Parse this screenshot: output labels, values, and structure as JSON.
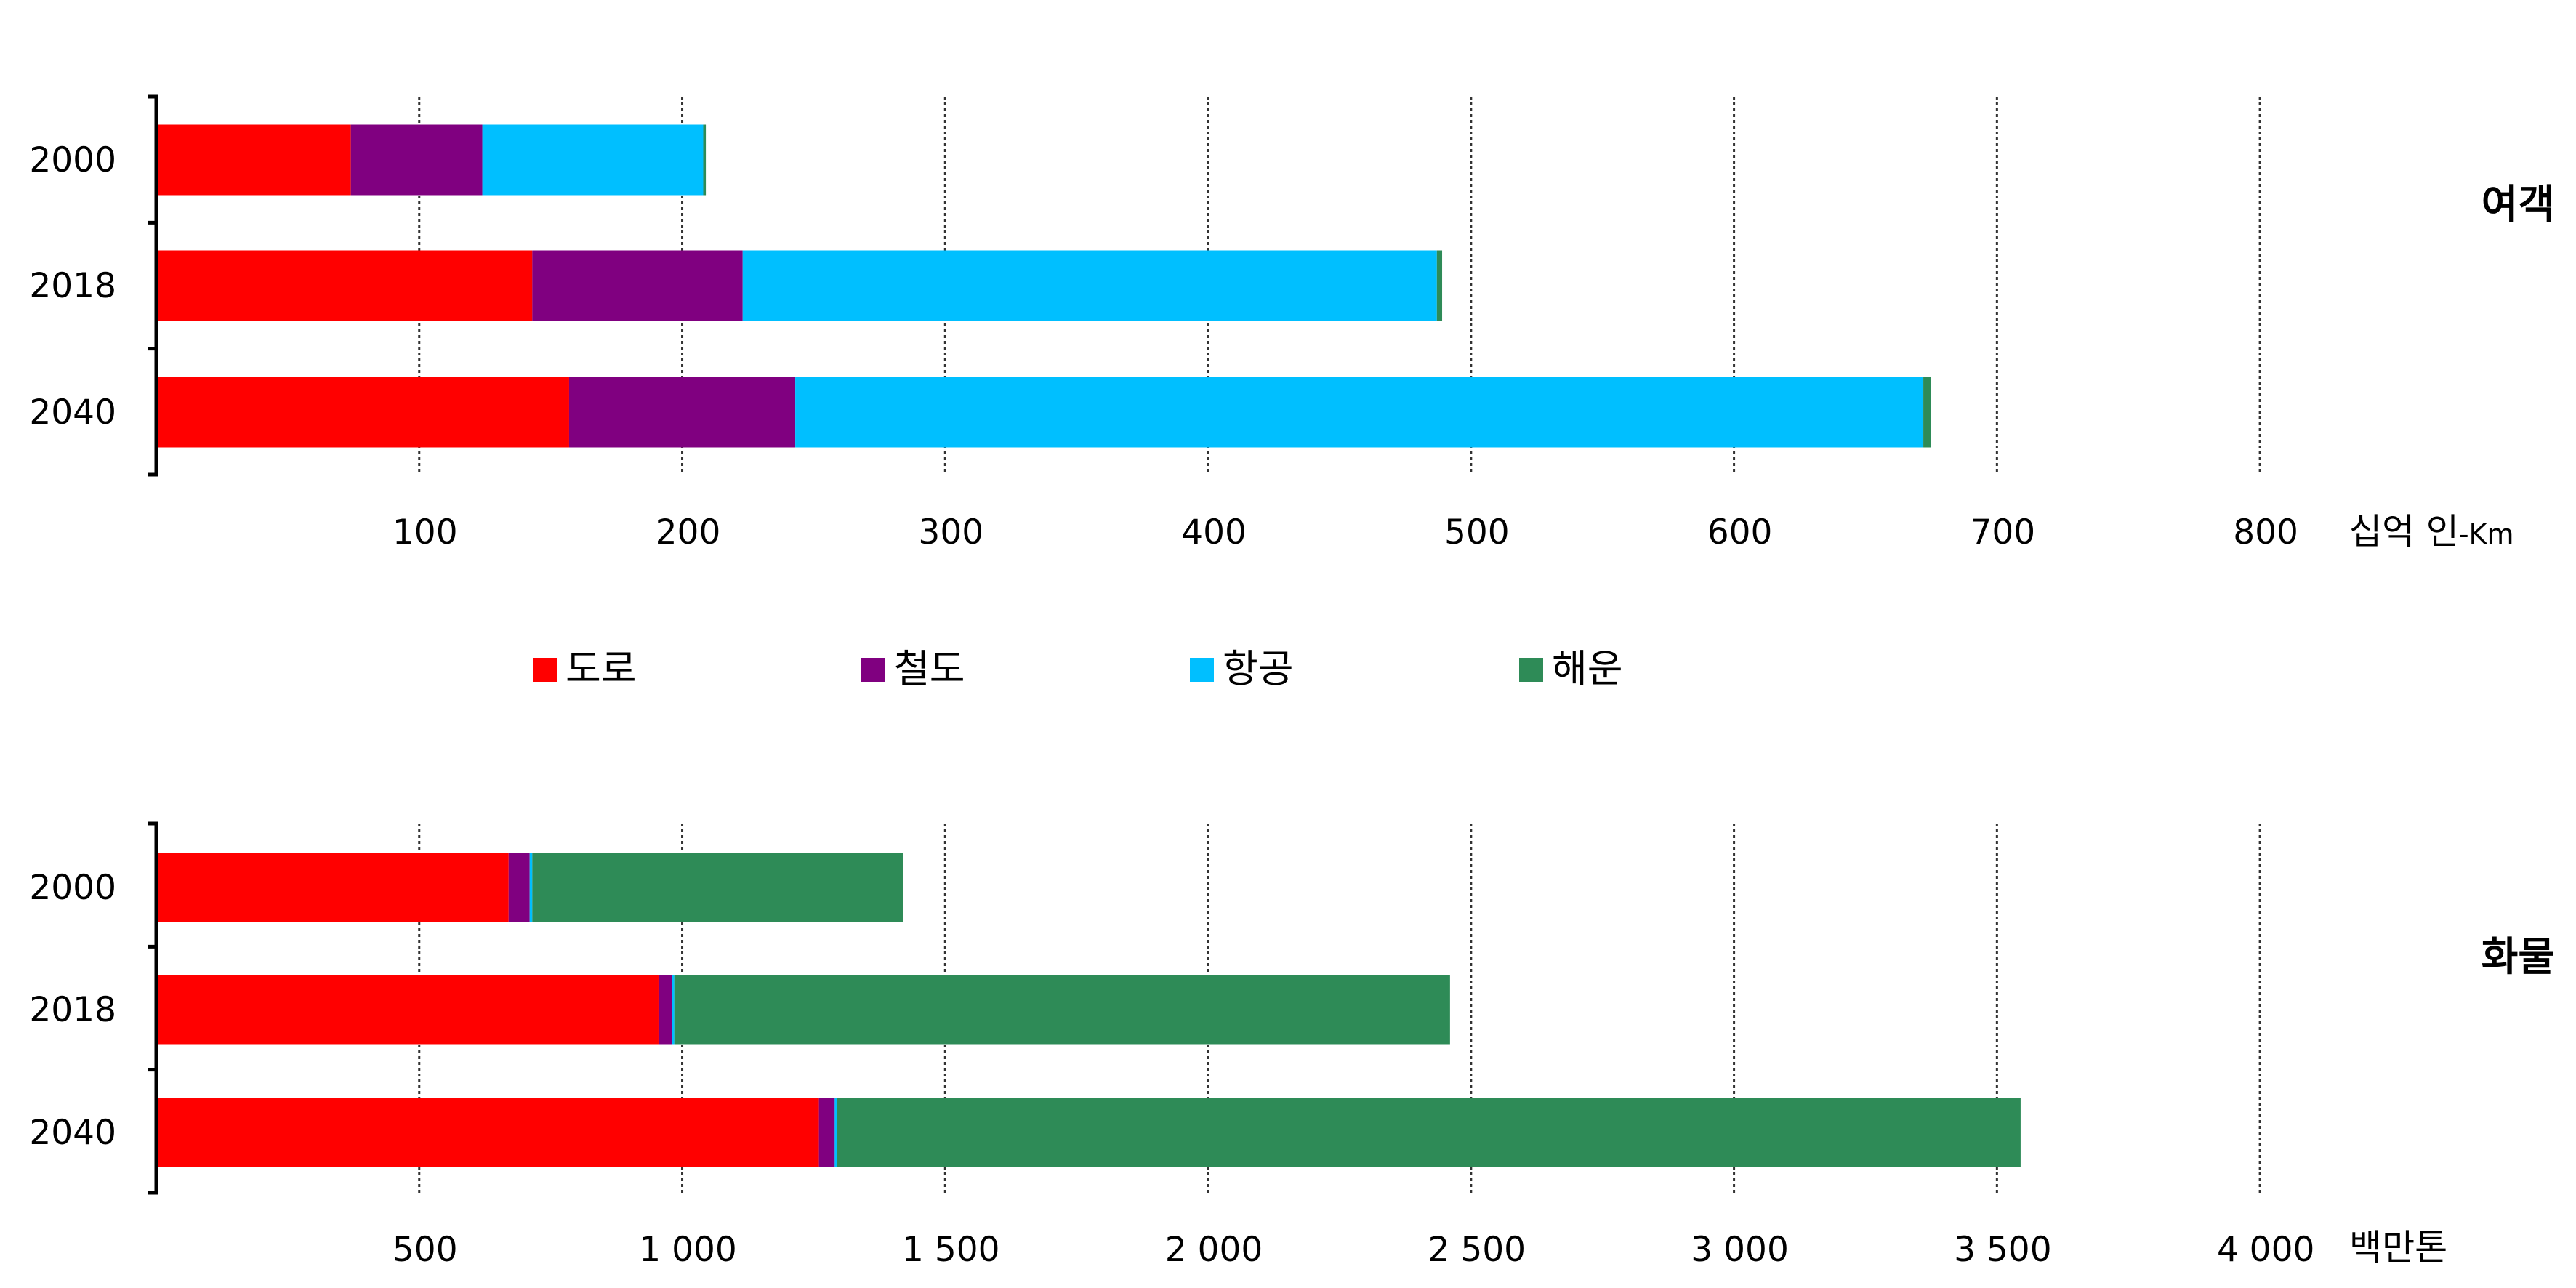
{
  "colors": {
    "road": "#ff0000",
    "rail": "#800080",
    "air": "#00bfff",
    "sea": "#2e8b57"
  },
  "legend": [
    {
      "key": "road",
      "label": "도로"
    },
    {
      "key": "rail",
      "label": "철도"
    },
    {
      "key": "air",
      "label": "항공"
    },
    {
      "key": "sea",
      "label": "해운"
    }
  ],
  "chart_data": [
    {
      "type": "bar",
      "orientation": "horizontal",
      "stacked": true,
      "side_label": "여객",
      "unit_main": "십억 인",
      "unit_suffix": "-Km",
      "categories": [
        "2000",
        "2018",
        "2040"
      ],
      "xlim": [
        0,
        850
      ],
      "grid": "vertical dotted",
      "tick_values": [
        100,
        200,
        300,
        400,
        500,
        600,
        700,
        800
      ],
      "tick_labels": [
        "100",
        "200",
        "300",
        "400",
        "500",
        "600",
        "700",
        "800"
      ],
      "series": [
        {
          "key": "road",
          "name": "도로",
          "values": [
            74,
            143,
            157
          ]
        },
        {
          "key": "rail",
          "name": "철도",
          "values": [
            50,
            80,
            86
          ]
        },
        {
          "key": "air",
          "name": "항공",
          "values": [
            84,
            264,
            429
          ]
        },
        {
          "key": "sea",
          "name": "해운",
          "values": [
            1,
            2,
            3
          ]
        }
      ]
    },
    {
      "type": "bar",
      "orientation": "horizontal",
      "stacked": true,
      "side_label": "화물",
      "unit_main": "백만톤",
      "unit_suffix": "",
      "categories": [
        "2000",
        "2018",
        "2040"
      ],
      "xlim": [
        0,
        4250
      ],
      "grid": "vertical dotted",
      "tick_values": [
        500,
        1000,
        1500,
        2000,
        2500,
        3000,
        3500,
        4000
      ],
      "tick_labels": [
        "500",
        "1 000",
        "1 500",
        "2 000",
        "2 500",
        "3 000",
        "3 500",
        "4 000"
      ],
      "series": [
        {
          "key": "road",
          "name": "도로",
          "values": [
            670,
            955,
            1260
          ]
        },
        {
          "key": "rail",
          "name": "철도",
          "values": [
            40,
            25,
            30
          ]
        },
        {
          "key": "air",
          "name": "항공",
          "values": [
            5,
            5,
            5
          ]
        },
        {
          "key": "sea",
          "name": "해운",
          "values": [
            705,
            1475,
            2250
          ]
        }
      ]
    }
  ]
}
